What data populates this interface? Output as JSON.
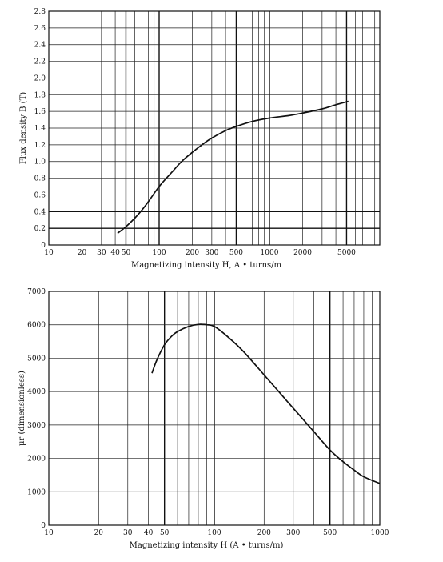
{
  "chart_data": [
    {
      "type": "line",
      "title": "",
      "xlabel": "Magnetizing intensity H,  A • turns/m",
      "ylabel": "Flux density B (T)",
      "x_scale": "log",
      "xlim": [
        10,
        10000
      ],
      "ylim": [
        0,
        2.8
      ],
      "x_tick_labels": [
        "10",
        "20",
        "30",
        "40",
        "50",
        "100",
        "200",
        "300",
        "500",
        "1000",
        "2000",
        "5000"
      ],
      "x_tick_values": [
        10,
        20,
        30,
        40,
        50,
        100,
        200,
        300,
        500,
        1000,
        2000,
        5000
      ],
      "y_tick_labels": [
        "0",
        "0.2",
        "0.4",
        "0.6",
        "0.8",
        "1.0",
        "1.2",
        "1.4",
        "1.6",
        "1.8",
        "2.0",
        "2.2",
        "2.4",
        "2.6",
        "2.8"
      ],
      "y_tick_values": [
        0,
        0.2,
        0.4,
        0.6,
        0.8,
        1.0,
        1.2,
        1.4,
        1.6,
        1.8,
        2.0,
        2.2,
        2.4,
        2.6,
        2.8
      ],
      "grid": true,
      "series": [
        {
          "x": [
            42,
            50,
            60,
            70,
            80,
            100,
            130,
            160,
            200,
            250,
            300,
            400,
            500,
            700,
            1000,
            1500,
            2000,
            3000,
            4000,
            5200
          ],
          "y": [
            0.14,
            0.22,
            0.32,
            0.42,
            0.52,
            0.7,
            0.87,
            1.0,
            1.11,
            1.21,
            1.28,
            1.37,
            1.42,
            1.48,
            1.52,
            1.55,
            1.58,
            1.63,
            1.68,
            1.72
          ]
        }
      ]
    },
    {
      "type": "line",
      "title": "",
      "xlabel": "Magnetizing intensity H (A • turns/m)",
      "ylabel": "μr (dimensionless)",
      "x_scale": "log",
      "xlim": [
        10,
        1000
      ],
      "ylim": [
        0,
        7000
      ],
      "x_tick_labels": [
        "10",
        "20",
        "30",
        "40",
        "50",
        "100",
        "200",
        "300",
        "500",
        "1000"
      ],
      "x_tick_values": [
        10,
        20,
        30,
        40,
        50,
        100,
        200,
        300,
        500,
        1000
      ],
      "y_tick_labels": [
        "0",
        "1000",
        "2000",
        "3000",
        "4000",
        "5000",
        "6000",
        "7000"
      ],
      "y_tick_values": [
        0,
        1000,
        2000,
        3000,
        4000,
        5000,
        6000,
        7000
      ],
      "grid": true,
      "series": [
        {
          "x": [
            42,
            45,
            50,
            55,
            60,
            70,
            80,
            90,
            100,
            120,
            150,
            200,
            250,
            300,
            400,
            500,
            600,
            700,
            800,
            1000
          ],
          "y": [
            4550,
            4950,
            5400,
            5650,
            5800,
            5950,
            6010,
            6000,
            5950,
            5650,
            5200,
            4500,
            3950,
            3500,
            2800,
            2250,
            1900,
            1650,
            1450,
            1250
          ]
        }
      ]
    }
  ]
}
